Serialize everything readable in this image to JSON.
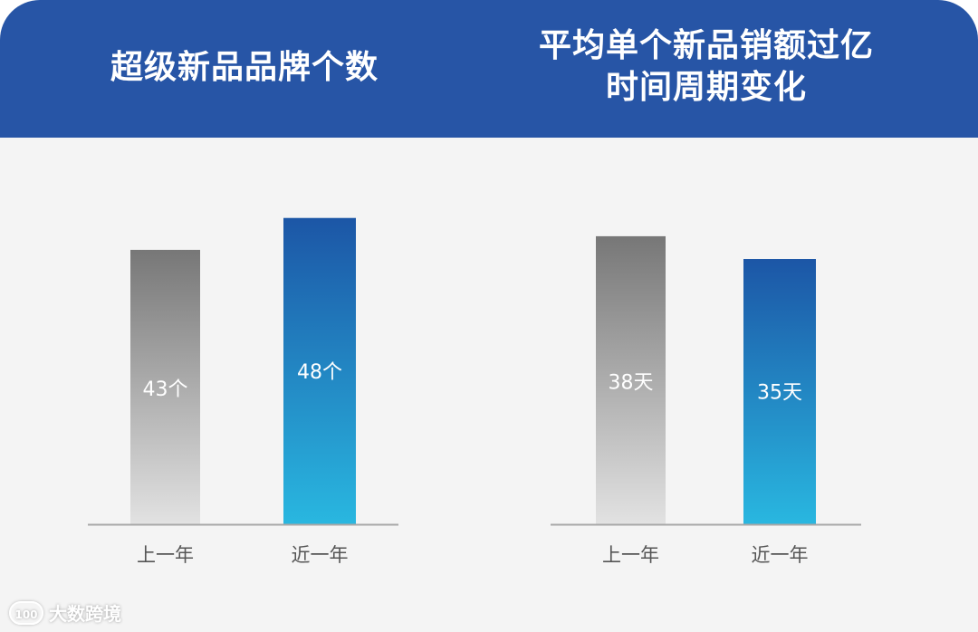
{
  "colors": {
    "header_bg": "#2755a6",
    "panel_bg": "#f4f4f4",
    "gray_bar_top": "#777777",
    "gray_bar_bottom": "#e2e2e2",
    "blue_bar_top": "#1c56a6",
    "blue_bar_bottom": "#29b7e0",
    "baseline": "#a8a8a8",
    "title_text": "#ffffff"
  },
  "header": {
    "left_title": "超级新品品牌个数",
    "right_title_line1": "平均单个新品销额过亿",
    "right_title_line2": "时间周期变化"
  },
  "watermark": {
    "logo_text": "100",
    "brand": "大数跨境"
  },
  "chart_data": [
    {
      "type": "bar",
      "title": "超级新品品牌个数",
      "categories": [
        "上一年",
        "近一年"
      ],
      "values": [
        43,
        48
      ],
      "data_labels": [
        "43个",
        "48个"
      ],
      "unit": "个",
      "ylim": [
        0,
        52.5
      ],
      "grid": false,
      "legend": "none",
      "bar_styles": [
        "gray",
        "blue"
      ]
    },
    {
      "type": "bar",
      "title": "平均单个新品销额过亿时间周期变化",
      "categories": [
        "上一年",
        "近一年"
      ],
      "values": [
        38,
        35
      ],
      "data_labels": [
        "38天",
        "35天"
      ],
      "unit": "天",
      "ylim": [
        0,
        44.2
      ],
      "grid": false,
      "legend": "none",
      "bar_styles": [
        "gray",
        "blue"
      ]
    }
  ]
}
